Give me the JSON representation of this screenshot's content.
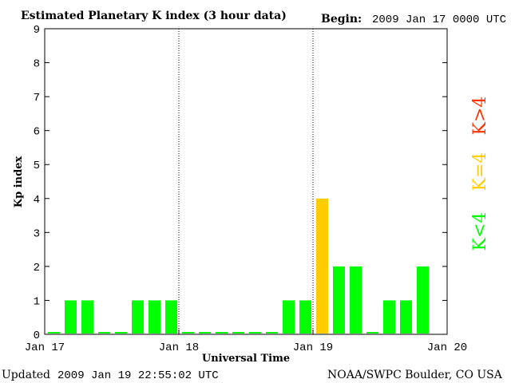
{
  "chart_data": {
    "type": "bar",
    "title": "Estimated Planetary K index (3 hour data)",
    "begin_label": "Begin:",
    "begin_value": "2009 Jan 17 0000 UTC",
    "xlabel": "Universal Time",
    "ylabel": "Kp index",
    "ylim": [
      0,
      9
    ],
    "yticks": [
      "0",
      "1",
      "2",
      "3",
      "4",
      "5",
      "6",
      "7",
      "8",
      "9"
    ],
    "xticks": [
      "Jan 17",
      "Jan 18",
      "Jan 19",
      "Jan 20"
    ],
    "values": [
      0,
      1,
      1,
      0,
      0,
      1,
      1,
      1,
      0,
      0,
      0,
      0,
      0,
      0,
      1,
      1,
      4,
      2,
      2,
      0,
      1,
      1,
      2
    ],
    "colors": {
      "low": "#00ff00",
      "equal": "#ffcc00",
      "high": "#ff3300",
      "divider": "#000000"
    },
    "legend": [
      {
        "label": "K>4",
        "color": "#ff3300"
      },
      {
        "label": "K=4",
        "color": "#ffcc00"
      },
      {
        "label": "K<4",
        "color": "#00ff00"
      }
    ],
    "grid": false
  },
  "footer": {
    "updated_label": "Updated",
    "updated_value": "2009 Jan 19 22:55:02 UTC",
    "source": "NOAA/SWPC Boulder, CO USA"
  }
}
